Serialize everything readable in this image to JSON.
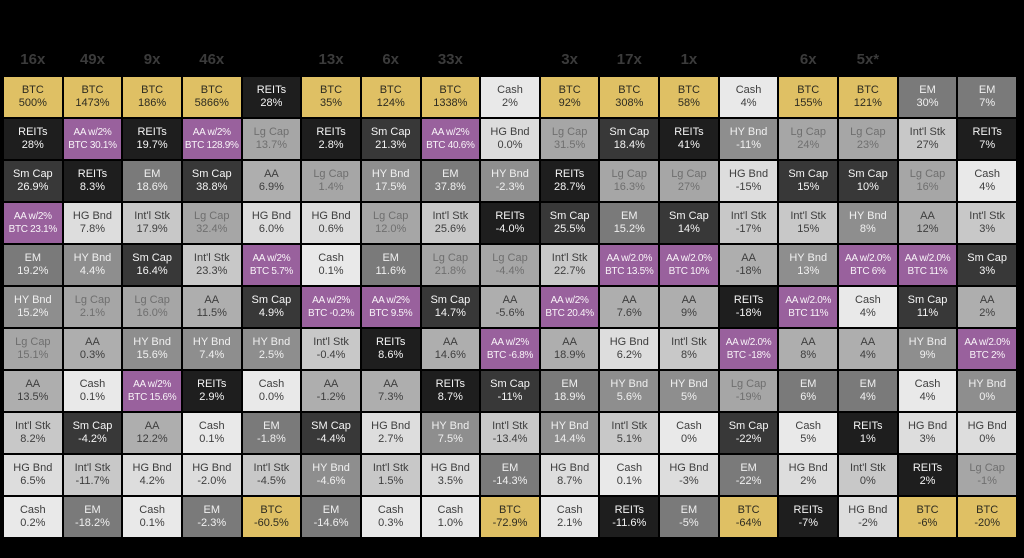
{
  "page": {
    "background": "#000000"
  },
  "chart_data": {
    "type": "table",
    "description_visible_text": "",
    "header_multipliers": [
      "16x",
      "49x",
      "9x",
      "46x",
      "",
      "13x",
      "6x",
      "33x",
      "",
      "3x",
      "17x",
      "1x",
      "",
      "6x",
      "5x*",
      "",
      ""
    ],
    "asset_styles": {
      "btc": {
        "name": "BTC",
        "bg": "#dfc064",
        "text": "#2d2b21"
      },
      "reits": {
        "name": "REITs",
        "bg": "#1e1e1e",
        "text": "#f5f5f5"
      },
      "smcap": {
        "name": "Sm Cap",
        "bg": "#383838",
        "text": "#f5f5f5"
      },
      "lgcap": {
        "name": "Lg Cap",
        "bg": "#a6a6a6",
        "text": "#6f6f6f"
      },
      "aa": {
        "name": "AA",
        "bg": "#aeaeae",
        "text": "#3e3e3e"
      },
      "aab": {
        "name": "AA w/2% BTC",
        "bg": "#99619d",
        "text": "#f8f3f8"
      },
      "em": {
        "name": "EM",
        "bg": "#7a7a7a",
        "text": "#f0f0f0"
      },
      "intl": {
        "name": "Int'l Stk",
        "bg": "#c8c8c8",
        "text": "#3e3e3e"
      },
      "hybnd": {
        "name": "HY Bnd",
        "bg": "#8e8e8e",
        "text": "#f0f0f0"
      },
      "hgbnd": {
        "name": "HG Bnd",
        "bg": "#dddddd",
        "text": "#3e3e3e"
      },
      "cash": {
        "name": "Cash",
        "bg": "#e9e9e9",
        "text": "#3e3e3e"
      }
    },
    "columns": [
      {
        "multiplier": "16x",
        "cells": [
          [
            "btc",
            "BTC",
            "500%"
          ],
          [
            "reits",
            "REITs",
            "28%"
          ],
          [
            "smcap",
            "Sm Cap",
            "26.9%"
          ],
          [
            "aab",
            "AA w/2%",
            "BTC 23.1%"
          ],
          [
            "em",
            "EM",
            "19.2%"
          ],
          [
            "hybnd",
            "HY Bnd",
            "15.2%"
          ],
          [
            "lgcap",
            "Lg Cap",
            "15.1%"
          ],
          [
            "aa",
            "AA",
            "13.5%"
          ],
          [
            "intl",
            "Int'l Stk",
            "8.2%"
          ],
          [
            "hgbnd",
            "HG Bnd",
            "6.5%"
          ],
          [
            "cash",
            "Cash",
            "0.2%"
          ]
        ]
      },
      {
        "multiplier": "49x",
        "cells": [
          [
            "btc",
            "BTC",
            "1473%"
          ],
          [
            "aab",
            "AA w/2%",
            "BTC 30.1%"
          ],
          [
            "reits",
            "REITs",
            "8.3%"
          ],
          [
            "hgbnd",
            "HG Bnd",
            "7.8%"
          ],
          [
            "hybnd",
            "HY Bnd",
            "4.4%"
          ],
          [
            "lgcap",
            "Lg Cap",
            "2.1%"
          ],
          [
            "aa",
            "AA",
            "0.3%"
          ],
          [
            "cash",
            "Cash",
            "0.1%"
          ],
          [
            "smcap",
            "Sm Cap",
            "-4.2%"
          ],
          [
            "intl",
            "Int'l Stk",
            "-11.7%"
          ],
          [
            "em",
            "EM",
            "-18.2%"
          ]
        ]
      },
      {
        "multiplier": "9x",
        "cells": [
          [
            "btc",
            "BTC",
            "186%"
          ],
          [
            "reits",
            "REITs",
            "19.7%"
          ],
          [
            "em",
            "EM",
            "18.6%"
          ],
          [
            "intl",
            "Int'l Stk",
            "17.9%"
          ],
          [
            "smcap",
            "Sm Cap",
            "16.4%"
          ],
          [
            "lgcap",
            "Lg Cap",
            "16.0%"
          ],
          [
            "hybnd",
            "HY Bnd",
            "15.6%"
          ],
          [
            "aab",
            "AA w/2%",
            "BTC 15.6%"
          ],
          [
            "aa",
            "AA",
            "12.2%"
          ],
          [
            "hgbnd",
            "HG Bnd",
            "4.2%"
          ],
          [
            "cash",
            "Cash",
            "0.1%"
          ]
        ]
      },
      {
        "multiplier": "46x",
        "cells": [
          [
            "btc",
            "BTC",
            "5866%"
          ],
          [
            "aab",
            "AA w/2%",
            "BTC 128.9%"
          ],
          [
            "smcap",
            "Sm Cap",
            "38.8%"
          ],
          [
            "lgcap",
            "Lg Cap",
            "32.4%"
          ],
          [
            "intl",
            "Int'l Stk",
            "23.3%"
          ],
          [
            "aa",
            "AA",
            "11.5%"
          ],
          [
            "hybnd",
            "HY Bnd",
            "7.4%"
          ],
          [
            "reits",
            "REITs",
            "2.9%"
          ],
          [
            "cash",
            "Cash",
            "0.1%"
          ],
          [
            "hgbnd",
            "HG Bnd",
            "-2.0%"
          ],
          [
            "em",
            "EM",
            "-2.3%"
          ]
        ]
      },
      {
        "multiplier": "",
        "cells": [
          [
            "reits",
            "REITs",
            "28%"
          ],
          [
            "lgcap",
            "Lg Cap",
            "13.7%"
          ],
          [
            "aa",
            "AA",
            "6.9%"
          ],
          [
            "hgbnd",
            "HG Bnd",
            "6.0%"
          ],
          [
            "aab",
            "AA w/2%",
            "BTC 5.7%"
          ],
          [
            "smcap",
            "Sm Cap",
            "4.9%"
          ],
          [
            "hybnd",
            "HY Bnd",
            "2.5%"
          ],
          [
            "cash",
            "Cash",
            "0.0%"
          ],
          [
            "em",
            "EM",
            "-1.8%"
          ],
          [
            "intl",
            "Int'l Stk",
            "-4.5%"
          ],
          [
            "btc",
            "BTC",
            "-60.5%"
          ]
        ]
      },
      {
        "multiplier": "13x",
        "cells": [
          [
            "btc",
            "BTC",
            "35%"
          ],
          [
            "reits",
            "REITs",
            "2.8%"
          ],
          [
            "lgcap",
            "Lg Cap",
            "1.4%"
          ],
          [
            "hgbnd",
            "HG Bnd",
            "0.6%"
          ],
          [
            "cash",
            "Cash",
            "0.1%"
          ],
          [
            "aab",
            "AA w/2%",
            "BTC -0.2%"
          ],
          [
            "intl",
            "Int'l Stk",
            "-0.4%"
          ],
          [
            "aa",
            "AA",
            "-1.2%"
          ],
          [
            "smcap",
            "SM Cap",
            "-4.4%"
          ],
          [
            "hybnd",
            "HY Bnd",
            "-4.6%"
          ],
          [
            "em",
            "EM",
            "-14.6%"
          ]
        ]
      },
      {
        "multiplier": "6x",
        "cells": [
          [
            "btc",
            "BTC",
            "124%"
          ],
          [
            "smcap",
            "Sm Cap",
            "21.3%"
          ],
          [
            "hybnd",
            "HY Bnd",
            "17.5%"
          ],
          [
            "lgcap",
            "Lg Cap",
            "12.0%"
          ],
          [
            "em",
            "EM",
            "11.6%"
          ],
          [
            "aab",
            "AA w/2%",
            "BTC 9.5%"
          ],
          [
            "reits",
            "REITs",
            "8.6%"
          ],
          [
            "aa",
            "AA",
            "7.3%"
          ],
          [
            "hgbnd",
            "HG Bnd",
            "2.7%"
          ],
          [
            "intl",
            "Int'l Stk",
            "1.5%"
          ],
          [
            "cash",
            "Cash",
            "0.3%"
          ]
        ]
      },
      {
        "multiplier": "33x",
        "cells": [
          [
            "btc",
            "BTC",
            "1338%"
          ],
          [
            "aab",
            "AA w/2%",
            "BTC 40.6%"
          ],
          [
            "em",
            "EM",
            "37.8%"
          ],
          [
            "intl",
            "Int'l Stk",
            "25.6%"
          ],
          [
            "lgcap",
            "Lg Cap",
            "21.8%"
          ],
          [
            "smcap",
            "Sm Cap",
            "14.7%"
          ],
          [
            "aa",
            "AA",
            "14.6%"
          ],
          [
            "reits",
            "REITs",
            "8.7%"
          ],
          [
            "hybnd",
            "HY Bnd",
            "7.5%"
          ],
          [
            "hgbnd",
            "HG Bnd",
            "3.5%"
          ],
          [
            "cash",
            "Cash",
            "1.0%"
          ]
        ]
      },
      {
        "multiplier": "",
        "cells": [
          [
            "cash",
            "Cash",
            "2%"
          ],
          [
            "hgbnd",
            "HG Bnd",
            "0.0%"
          ],
          [
            "hybnd",
            "HY Bnd",
            "-2.3%"
          ],
          [
            "reits",
            "REITs",
            "-4.0%"
          ],
          [
            "lgcap",
            "Lg Cap",
            "-4.4%"
          ],
          [
            "aa",
            "AA",
            "-5.6%"
          ],
          [
            "aab",
            "AA w/2%",
            "BTC -6.8%"
          ],
          [
            "smcap",
            "Sm Cap",
            "-11%"
          ],
          [
            "intl",
            "Int'l Stk",
            "-13.4%"
          ],
          [
            "em",
            "EM",
            "-14.3%"
          ],
          [
            "btc",
            "BTC",
            "-72.9%"
          ]
        ]
      },
      {
        "multiplier": "3x",
        "cells": [
          [
            "btc",
            "BTC",
            "92%"
          ],
          [
            "lgcap",
            "Lg Cap",
            "31.5%"
          ],
          [
            "reits",
            "REITs",
            "28.7%"
          ],
          [
            "smcap",
            "Sm Cap",
            "25.5%"
          ],
          [
            "intl",
            "Int'l Stk",
            "22.7%"
          ],
          [
            "aab",
            "AA w/2%",
            "BTC 20.4%"
          ],
          [
            "aa",
            "AA",
            "18.9%"
          ],
          [
            "em",
            "EM",
            "18.9%"
          ],
          [
            "hybnd",
            "HY Bnd",
            "14.4%"
          ],
          [
            "hgbnd",
            "HG Bnd",
            "8.7%"
          ],
          [
            "cash",
            "Cash",
            "2.1%"
          ]
        ]
      },
      {
        "multiplier": "17x",
        "cells": [
          [
            "btc",
            "BTC",
            "308%"
          ],
          [
            "smcap",
            "Sm Cap",
            "18.4%"
          ],
          [
            "lgcap",
            "Lg Cap",
            "16.3%"
          ],
          [
            "em",
            "EM",
            "15.2%"
          ],
          [
            "aab",
            "AA w/2.0%",
            "BTC 13.5%"
          ],
          [
            "aa",
            "AA",
            "7.6%"
          ],
          [
            "hgbnd",
            "HG Bnd",
            "6.2%"
          ],
          [
            "hybnd",
            "HY Bnd",
            "5.6%"
          ],
          [
            "intl",
            "Int'l Stk",
            "5.1%"
          ],
          [
            "cash",
            "Cash",
            "0.1%"
          ],
          [
            "reits",
            "REITs",
            "-11.6%"
          ]
        ]
      },
      {
        "multiplier": "1x",
        "cells": [
          [
            "btc",
            "BTC",
            "58%"
          ],
          [
            "reits",
            "REITs",
            "41%"
          ],
          [
            "lgcap",
            "Lg Cap",
            "27%"
          ],
          [
            "smcap",
            "Sm Cap",
            "14%"
          ],
          [
            "aab",
            "AA w/2.0%",
            "BTC 10%"
          ],
          [
            "aa",
            "AA",
            "9%"
          ],
          [
            "intl",
            "Int'l Stk",
            "8%"
          ],
          [
            "hybnd",
            "HY Bnd",
            "5%"
          ],
          [
            "cash",
            "Cash",
            "0%"
          ],
          [
            "hgbnd",
            "HG Bnd",
            "-3%"
          ],
          [
            "em",
            "EM",
            "-5%"
          ]
        ]
      },
      {
        "multiplier": "",
        "cells": [
          [
            "cash",
            "Cash",
            "4%"
          ],
          [
            "hybnd",
            "HY Bnd",
            "-11%"
          ],
          [
            "hgbnd",
            "HG Bnd",
            "-15%"
          ],
          [
            "intl",
            "Int'l Stk",
            "-17%"
          ],
          [
            "aa",
            "AA",
            "-18%"
          ],
          [
            "reits",
            "REITs",
            "-18%"
          ],
          [
            "aab",
            "AA w/2.0%",
            "BTC -18%"
          ],
          [
            "lgcap",
            "Lg Cap",
            "-19%"
          ],
          [
            "smcap",
            "Sm Cap",
            "-22%"
          ],
          [
            "em",
            "EM",
            "-22%"
          ],
          [
            "btc",
            "BTC",
            "-64%"
          ]
        ]
      },
      {
        "multiplier": "6x",
        "cells": [
          [
            "btc",
            "BTC",
            "155%"
          ],
          [
            "lgcap",
            "Lg Cap",
            "24%"
          ],
          [
            "smcap",
            "Sm Cap",
            "15%"
          ],
          [
            "intl",
            "Int'l Stk",
            "15%"
          ],
          [
            "hybnd",
            "HY Bnd",
            "13%"
          ],
          [
            "aab",
            "AA w/2.0%",
            "BTC 11%"
          ],
          [
            "aa",
            "AA",
            "8%"
          ],
          [
            "em",
            "EM",
            "6%"
          ],
          [
            "cash",
            "Cash",
            "5%"
          ],
          [
            "hgbnd",
            "HG Bnd",
            "2%"
          ],
          [
            "reits",
            "REITs",
            "-7%"
          ]
        ]
      },
      {
        "multiplier": "5x*",
        "cells": [
          [
            "btc",
            "BTC",
            "121%"
          ],
          [
            "lgcap",
            "Lg Cap",
            "23%"
          ],
          [
            "smcap",
            "Sm Cap",
            "10%"
          ],
          [
            "hybnd",
            "HY Bnd",
            "8%"
          ],
          [
            "aab",
            "AA w/2.0%",
            "BTC 6%"
          ],
          [
            "cash",
            "Cash",
            "4%"
          ],
          [
            "aa",
            "AA",
            "4%"
          ],
          [
            "em",
            "EM",
            "4%"
          ],
          [
            "reits",
            "REITs",
            "1%"
          ],
          [
            "intl",
            "Int'l Stk",
            "0%"
          ],
          [
            "hgbnd",
            "HG Bnd",
            "-2%"
          ]
        ]
      },
      {
        "multiplier": "",
        "cells": [
          [
            "em",
            "EM",
            "30%"
          ],
          [
            "intl",
            "Int'l Stk",
            "27%"
          ],
          [
            "lgcap",
            "Lg Cap",
            "16%"
          ],
          [
            "aa",
            "AA",
            "12%"
          ],
          [
            "aab",
            "AA w/2.0%",
            "BTC 11%"
          ],
          [
            "smcap",
            "Sm Cap",
            "11%"
          ],
          [
            "hybnd",
            "HY Bnd",
            "9%"
          ],
          [
            "cash",
            "Cash",
            "4%"
          ],
          [
            "hgbnd",
            "HG Bnd",
            "3%"
          ],
          [
            "reits",
            "REITs",
            "2%"
          ],
          [
            "btc",
            "BTC",
            "-6%"
          ]
        ]
      },
      {
        "multiplier": "",
        "cells": [
          [
            "em",
            "EM",
            "7%"
          ],
          [
            "reits",
            "REITs",
            "7%"
          ],
          [
            "cash",
            "Cash",
            "4%"
          ],
          [
            "intl",
            "Int'l Stk",
            "3%"
          ],
          [
            "smcap",
            "Sm Cap",
            "3%"
          ],
          [
            "aa",
            "AA",
            "2%"
          ],
          [
            "aab",
            "AA w/2.0%",
            "BTC 2%"
          ],
          [
            "hybnd",
            "HY Bnd",
            "0%"
          ],
          [
            "hgbnd",
            "HG Bnd",
            "0%"
          ],
          [
            "lgcap",
            "Lg Cap",
            "-1%"
          ],
          [
            "btc",
            "BTC",
            "-20%"
          ]
        ]
      }
    ]
  }
}
